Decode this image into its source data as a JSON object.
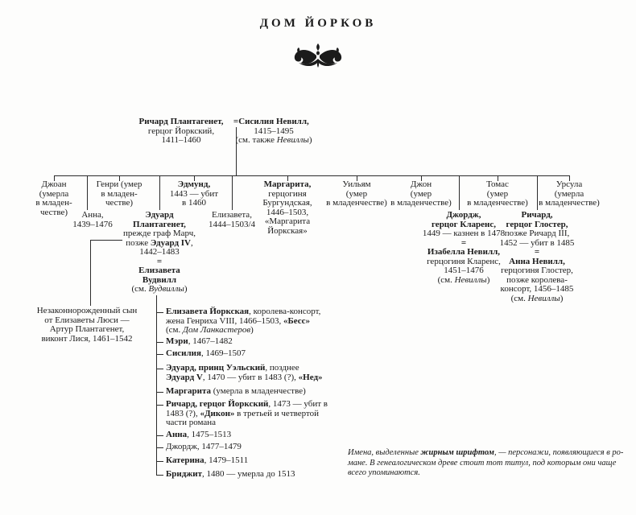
{
  "title": "ДОМ ЙОРКОВ",
  "colors": {
    "ink": "#1b1b1b",
    "line": "#2b2b2b",
    "background": "#fdfdfc"
  },
  "ornament": {
    "icon": "typographic-fleuron"
  },
  "tree": {
    "marriage_symbol": "=",
    "father": {
      "name": "Ричард Плантагенет",
      "lines": [
        [
          {
            "t": "Ричард Плантагенет,",
            "b": true
          }
        ],
        "герцог Йоркский,",
        "1411–1460"
      ]
    },
    "mother": {
      "name": "Сисилия Невилл",
      "lines": [
        [
          {
            "t": "Сисилия Невилл,",
            "b": true
          }
        ],
        "1415–1495",
        [
          {
            "t": "(см. также "
          },
          {
            "t": "Невиллы",
            "i": true
          },
          {
            "t": ")"
          }
        ]
      ]
    },
    "children_row1": [
      {
        "name": "Джоан",
        "lines": [
          "Джоан",
          "(умерла",
          "в младен-",
          "честве)"
        ]
      },
      {
        "name": "Генри",
        "lines": [
          "Генри (умер",
          "в младен-",
          "честве)"
        ]
      },
      {
        "name": "Эдмунд",
        "lines": [
          [
            {
              "t": "Эдмунд,",
              "b": true
            }
          ],
          "1443 — убит",
          "в 1460"
        ]
      },
      {
        "name": "Маргарита",
        "lines": [
          [
            {
              "t": "Маргарита,",
              "b": true
            }
          ],
          "герцогиня",
          "Бургундская,",
          "1446–1503,",
          "«Маргарита",
          "Йоркская»"
        ]
      },
      {
        "name": "Уильям",
        "lines": [
          "Уильям",
          "(умер",
          "в младенчестве)"
        ]
      },
      {
        "name": "Джон",
        "lines": [
          "Джон",
          "(умер",
          "в младенчестве)"
        ]
      },
      {
        "name": "Томас",
        "lines": [
          "Томас",
          "(умер",
          "в младенчестве)"
        ]
      },
      {
        "name": "Урсула",
        "lines": [
          "Урсула",
          "(умерла",
          "в младенчестве)"
        ]
      }
    ],
    "children_row2": [
      {
        "name": "Анна",
        "lines": [
          "Анна,",
          "1439–1476"
        ]
      },
      {
        "name": "Эдуард IV и Елизавета Вудвилл",
        "lines": [
          [
            {
              "t": "Эдуард",
              "b": true
            }
          ],
          [
            {
              "t": "Плантагенет,",
              "b": true
            }
          ],
          "прежде граф Марч,",
          [
            {
              "t": "позже "
            },
            {
              "t": "Эдуард IV",
              "b": true
            },
            {
              "t": ","
            }
          ],
          "1442–1483",
          [
            {
              "t": "=",
              "b": true
            }
          ],
          [
            {
              "t": "Елизавета",
              "b": true
            }
          ],
          [
            {
              "t": "Вудвилл",
              "b": true
            }
          ],
          [
            {
              "t": "(см. "
            },
            {
              "t": "Вудвиллы",
              "i": true
            },
            {
              "t": ")"
            }
          ]
        ]
      },
      {
        "name": "Елизавета",
        "lines": [
          "Елизавета,",
          "1444–1503/4"
        ]
      },
      {
        "name": "Джордж и Изабелла Невилл",
        "lines": [
          [
            {
              "t": "Джордж,",
              "b": true
            }
          ],
          [
            {
              "t": "герцог Кларенс,",
              "b": true
            }
          ],
          "1449 — казнен в 1478",
          [
            {
              "t": "=",
              "b": true
            }
          ],
          [
            {
              "t": "Изабелла Невилл,",
              "b": true
            }
          ],
          "герцогиня Кларенс,",
          "1451–1476",
          [
            {
              "t": "(см. "
            },
            {
              "t": "Невиллы",
              "i": true
            },
            {
              "t": ")"
            }
          ]
        ]
      },
      {
        "name": "Ричард и Анна Невилл",
        "lines": [
          [
            {
              "t": "Ричард,",
              "b": true
            }
          ],
          [
            {
              "t": "герцог Глостер,",
              "b": true
            }
          ],
          "позже Ричард III,",
          "1452 — убит в 1485",
          [
            {
              "t": "=",
              "b": true
            }
          ],
          [
            {
              "t": "Анна Невилл,",
              "b": true
            }
          ],
          "герцогиня Глостер,",
          "позже королева-",
          "консорт, 1456–1485",
          [
            {
              "t": "(см. "
            },
            {
              "t": "Невиллы",
              "i": true
            },
            {
              "t": ")"
            }
          ]
        ]
      }
    ],
    "illegitimate_son": {
      "name": "Артур Плантагенет",
      "lines": [
        "Незаконнорожденный сын",
        "от Елизаветы Люси —",
        "Артур Плантагенет,",
        "виконт Лися, 1461–1542"
      ]
    },
    "edward_children": [
      {
        "lines": [
          [
            {
              "t": "Елизавета Йоркская",
              "b": true
            },
            {
              "t": ", королева-консорт,"
            }
          ],
          [
            {
              "t": "жена Генриха VIII, 1466–1503, "
            },
            {
              "t": "«Бесс»",
              "b": true
            }
          ],
          [
            {
              "t": "(см. "
            },
            {
              "t": "Дом Ланкастеров",
              "i": true
            },
            {
              "t": ")"
            }
          ]
        ]
      },
      {
        "lines": [
          [
            {
              "t": "Мэри",
              "b": true
            },
            {
              "t": ", 1467–1482"
            }
          ]
        ]
      },
      {
        "lines": [
          [
            {
              "t": "Сисилия",
              "b": true
            },
            {
              "t": ", 1469–1507"
            }
          ]
        ]
      },
      {
        "lines": [
          [
            {
              "t": "Эдуард, принц Уэльский",
              "b": true
            },
            {
              "t": ", позднее"
            }
          ],
          [
            {
              "t": "Эдуард V",
              "b": true
            },
            {
              "t": ", 1470 — убит в 1483 (?), "
            },
            {
              "t": "«Нед»",
              "b": true
            }
          ]
        ]
      },
      {
        "lines": [
          [
            {
              "t": "Маргарита",
              "b": true
            },
            {
              "t": " (умерла в младенчестве)"
            }
          ]
        ]
      },
      {
        "lines": [
          [
            {
              "t": "Ричард, герцог Йоркский",
              "b": true
            },
            {
              "t": ", 1473 — убит в"
            }
          ],
          [
            {
              "t": "1483 (?), "
            },
            {
              "t": "«Дикон»",
              "b": true
            },
            {
              "t": " в третьей и четвертой"
            }
          ],
          "части романа"
        ]
      },
      {
        "lines": [
          [
            {
              "t": "Анна",
              "b": true
            },
            {
              "t": ", 1475–1513"
            }
          ]
        ]
      },
      {
        "lines": [
          "Джордж, 1477–1479"
        ]
      },
      {
        "lines": [
          [
            {
              "t": "Катерина",
              "b": true
            },
            {
              "t": ", 1479–1511"
            }
          ]
        ]
      },
      {
        "lines": [
          [
            {
              "t": "Бриджит",
              "b": true
            },
            {
              "t": ", 1480 — умерла до 1513"
            }
          ]
        ]
      }
    ]
  },
  "footnote": {
    "lines": [
      [
        {
          "t": "Имена, выделенные "
        },
        {
          "t": "жирным шрифтом",
          "b": true
        },
        {
          "t": ", — персонажи, появляющиеся в ро-"
        }
      ],
      "мане. В генеалогическом древе стоит тот титул, под которым они чаще",
      "всего упоминаются."
    ]
  }
}
